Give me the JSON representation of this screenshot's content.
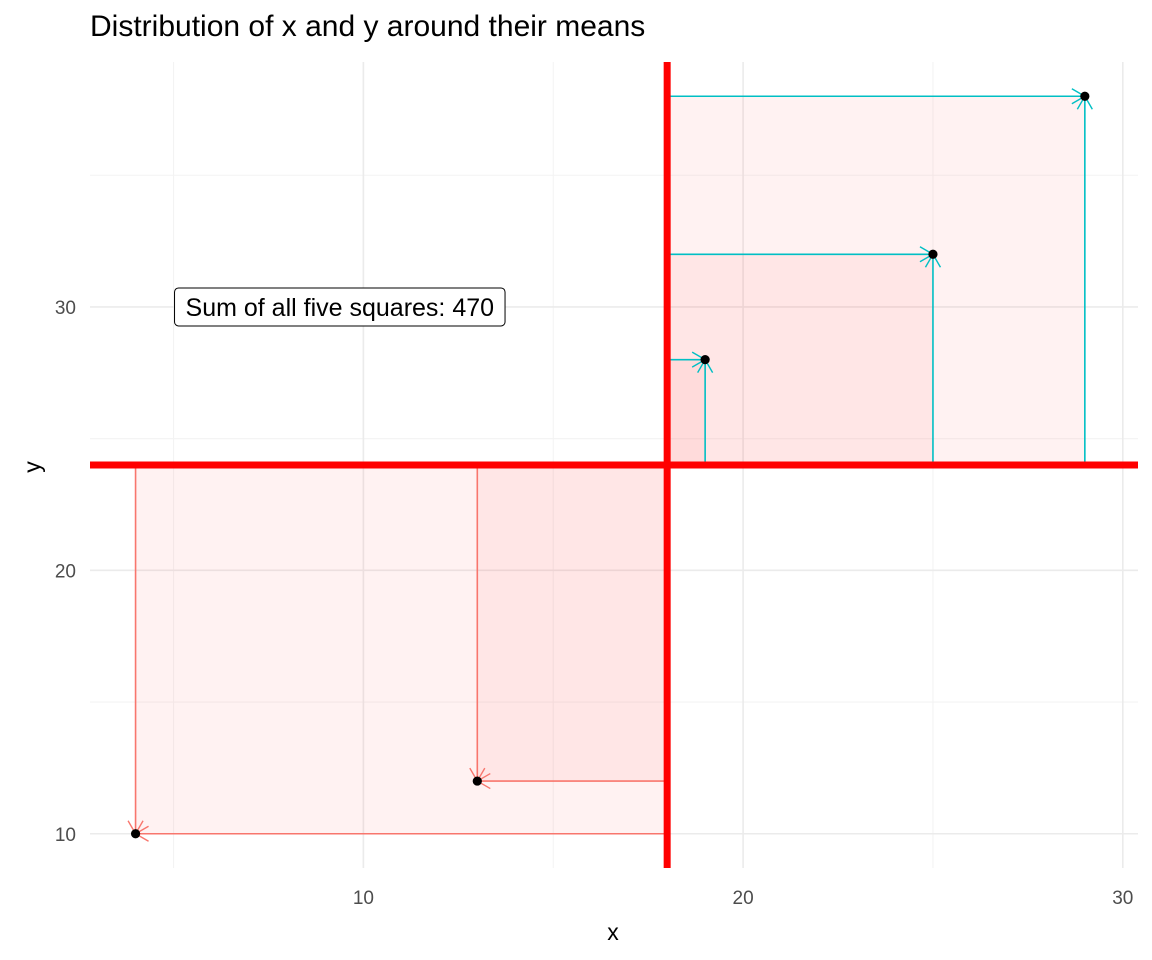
{
  "chart_data": {
    "type": "scatter",
    "title": "Distribution of x and y around their means",
    "xlabel": "x",
    "ylabel": "y",
    "xlim": [
      2.8,
      30.4
    ],
    "ylim": [
      8.7,
      39.3
    ],
    "x_ticks": [
      10,
      20,
      30
    ],
    "y_ticks": [
      10,
      20,
      30
    ],
    "x_minor": [
      5,
      15,
      25
    ],
    "y_minor": [
      15,
      25,
      35
    ],
    "grid": true,
    "mean_x": 18,
    "mean_y": 24,
    "points": [
      {
        "x": 4,
        "y": 10
      },
      {
        "x": 13,
        "y": 12
      },
      {
        "x": 19,
        "y": 28
      },
      {
        "x": 25,
        "y": 32
      },
      {
        "x": 29,
        "y": 38
      }
    ],
    "annotation": "Sum of all five squares: 470",
    "annotation_pos": {
      "x": 5,
      "y": 30
    },
    "colors": {
      "mean_lines": "#ff0000",
      "below_mean": "#f8766d",
      "above_mean": "#00bfc4",
      "square_fill": "#ff6b6b",
      "grid": "#ebebeb",
      "points": "#000000"
    }
  }
}
